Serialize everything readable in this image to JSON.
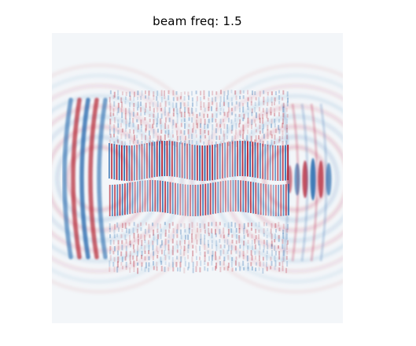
{
  "title": "beam freq: 1.5",
  "colors": {
    "background": "#f3f6f9",
    "positive": "#b2182b",
    "negative": "#2166ac",
    "neutral": "#f7f7f7"
  }
}
